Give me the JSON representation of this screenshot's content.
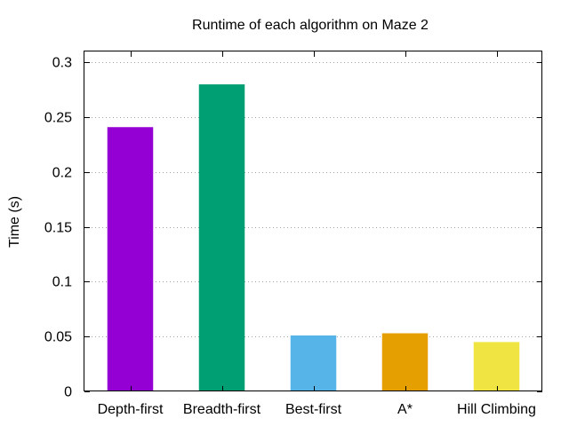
{
  "chart_data": {
    "type": "bar",
    "title": "Runtime of each algorithm on Maze 2",
    "xlabel": "",
    "ylabel": "Time (s)",
    "categories": [
      "Depth-first",
      "Breadth-first",
      "Best-first",
      "A*",
      "Hill Climbing"
    ],
    "values": [
      0.241,
      0.28,
      0.051,
      0.053,
      0.045
    ],
    "colors": [
      "#9400d3",
      "#009e73",
      "#56b4e9",
      "#e69f00",
      "#f0e442"
    ],
    "ylim": [
      0,
      0.31
    ],
    "yticks": [
      {
        "value": 0,
        "label": "0"
      },
      {
        "value": 0.05,
        "label": "0.05"
      },
      {
        "value": 0.1,
        "label": "0.1"
      },
      {
        "value": 0.15,
        "label": "0.15"
      },
      {
        "value": 0.2,
        "label": "0.2"
      },
      {
        "value": 0.25,
        "label": "0.25"
      },
      {
        "value": 0.3,
        "label": "0.3"
      }
    ],
    "grid": true,
    "legend": "none"
  }
}
